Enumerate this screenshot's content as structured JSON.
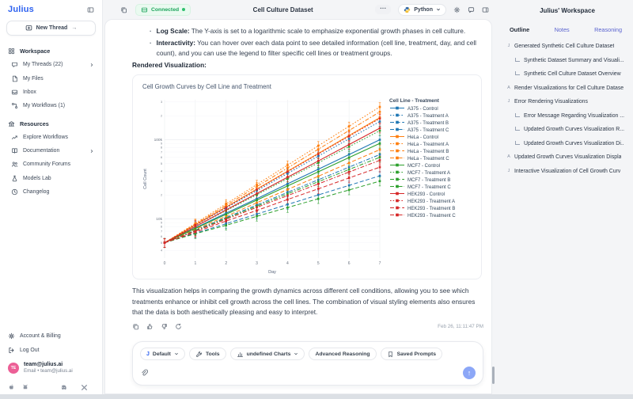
{
  "brand": {
    "logo": "Julius"
  },
  "topbar": {
    "title": "Cell Culture Dataset",
    "connected_label": "Connected",
    "python_label": "Python",
    "menu_dots": "···"
  },
  "sidebar": {
    "new_thread_label": "New Thread",
    "new_thread_arrow": "→",
    "sections": [
      {
        "title": "Workspace",
        "icon": "grid",
        "items": [
          {
            "label": "My Threads (22)",
            "icon": "chat",
            "chevron": true
          },
          {
            "label": "My Files",
            "icon": "file"
          },
          {
            "label": "Inbox",
            "icon": "inbox"
          },
          {
            "label": "My Workflows (1)",
            "icon": "workflow"
          }
        ]
      },
      {
        "title": "Resources",
        "icon": "bank",
        "items": [
          {
            "label": "Explore Workflows",
            "icon": "explore"
          },
          {
            "label": "Documentation",
            "icon": "book",
            "chevron": true
          },
          {
            "label": "Community Forums",
            "icon": "people"
          },
          {
            "label": "Models Lab",
            "icon": "flask"
          },
          {
            "label": "Changelog",
            "icon": "clock"
          }
        ]
      }
    ],
    "footer_items": [
      {
        "label": "Account & Billing",
        "icon": "gear"
      },
      {
        "label": "Log Out",
        "icon": "logout"
      }
    ],
    "user": {
      "initials": "TE",
      "name": "team@julius.ai",
      "detail": "Email • team@julius.ai"
    },
    "app_icons": [
      "apple",
      "android"
    ],
    "app_icons_right": [
      "discord",
      "x-twitter"
    ]
  },
  "message": {
    "bullets": [
      {
        "title": "Log Scale:",
        "text": "The Y-axis is set to a logarithmic scale to emphasize exponential growth phases in cell culture."
      },
      {
        "title": "Interactivity:",
        "text": "You can hover over each data point to see detailed information (cell line, treatment, day, and cell count), and you can use the legend to filter specific cell lines or treatment groups."
      }
    ],
    "rendered_viz_label": "Rendered Visualization:",
    "closing_paragraph": "This visualization helps in comparing the growth dynamics across different cell conditions, allowing you to see which treatments enhance or inhibit cell growth across the cell lines. The combination of visual styling elements also ensures that the data is both aesthetically pleasing and easy to interpret.",
    "action_icons": [
      "copy",
      "thumbs-up",
      "thumbs-down",
      "regenerate"
    ],
    "timestamp": "Feb 26, 11:11:47 PM"
  },
  "chart_data": {
    "type": "line",
    "title": "Cell Growth Curves by Cell Line and Treatment",
    "xlabel": "Day",
    "ylabel": "Cell Count",
    "legend_title": "Cell Line - Treatment",
    "legend_position": "right",
    "yscale": "log",
    "ylim": [
      3200,
      320000
    ],
    "x": [
      0,
      1,
      2,
      3,
      4,
      5,
      6,
      7
    ],
    "error_bars_pct": 13,
    "grid": true,
    "series": [
      {
        "name": "A375 - Control",
        "color": "#1f77b4",
        "dash": "solid",
        "values": [
          5000,
          7700,
          11800,
          18000,
          27700,
          42500,
          65100,
          100000
        ]
      },
      {
        "name": "A375 - Treatment A",
        "color": "#1f77b4",
        "dash": "dot",
        "values": [
          5000,
          8300,
          13700,
          22700,
          37500,
          62000,
          102600,
          170000
        ]
      },
      {
        "name": "A375 - Treatment B",
        "color": "#1f77b4",
        "dash": "dash",
        "values": [
          5000,
          6600,
          8700,
          11500,
          15200,
          20100,
          26500,
          35000
        ]
      },
      {
        "name": "A375 - Treatment C",
        "color": "#1f77b4",
        "dash": "dashdot",
        "values": [
          5000,
          7200,
          10400,
          15000,
          21700,
          31200,
          45100,
          65000
        ]
      },
      {
        "name": "HeLa - Control",
        "color": "#ff7f0e",
        "dash": "solid",
        "values": [
          5000,
          8400,
          14100,
          23800,
          40000,
          67200,
          113100,
          190000
        ]
      },
      {
        "name": "HeLa - Treatment A",
        "color": "#ff7f0e",
        "dash": "dot",
        "values": [
          5000,
          8800,
          15500,
          27200,
          47800,
          84000,
          147800,
          260000
        ]
      },
      {
        "name": "HeLa - Treatment B",
        "color": "#ff7f0e",
        "dash": "dash",
        "values": [
          5000,
          7400,
          10800,
          16000,
          23500,
          34600,
          50900,
          75000
        ]
      },
      {
        "name": "HeLa - Treatment C",
        "color": "#ff7f0e",
        "dash": "dashdot",
        "values": [
          5000,
          8600,
          14800,
          25600,
          44000,
          75800,
          130600,
          225000
        ]
      },
      {
        "name": "MCF7 - Control",
        "color": "#2ca02c",
        "dash": "solid",
        "values": [
          5000,
          7600,
          11400,
          17300,
          26100,
          39400,
          59600,
          90000
        ]
      },
      {
        "name": "MCF7 - Treatment A",
        "color": "#2ca02c",
        "dash": "dot",
        "values": [
          5000,
          8000,
          12700,
          20200,
          32200,
          51200,
          81600,
          130000
        ]
      },
      {
        "name": "MCF7 - Treatment B",
        "color": "#2ca02c",
        "dash": "dash",
        "values": [
          5000,
          6500,
          8300,
          10800,
          13900,
          18000,
          23200,
          30000
        ]
      },
      {
        "name": "MCF7 - Treatment C",
        "color": "#2ca02c",
        "dash": "dashdot",
        "values": [
          5000,
          7100,
          10200,
          14500,
          20700,
          29500,
          42100,
          60000
        ]
      },
      {
        "name": "HEK293 - Control",
        "color": "#d62728",
        "dash": "solid",
        "values": [
          5000,
          8000,
          13000,
          20900,
          33600,
          54000,
          87000,
          140000
        ]
      },
      {
        "name": "HEK293 - Treatment A",
        "color": "#d62728",
        "dash": "dot",
        "values": [
          5000,
          8400,
          14000,
          23500,
          39400,
          65900,
          110400,
          185000
        ]
      },
      {
        "name": "HEK293 - Treatment B",
        "color": "#d62728",
        "dash": "dash",
        "values": [
          5000,
          6800,
          9400,
          12800,
          17600,
          24000,
          32900,
          45000
        ]
      },
      {
        "name": "HEK293 - Treatment C",
        "color": "#d62728",
        "dash": "dashdot",
        "values": [
          5000,
          7000,
          9900,
          14000,
          19700,
          27700,
          39100,
          55000
        ]
      }
    ]
  },
  "composer": {
    "pills": [
      {
        "label": "Default",
        "icon": "julius-j",
        "chevron": true
      },
      {
        "label": "Tools",
        "icon": "wrench"
      },
      {
        "label": "undefined Charts",
        "icon": "chart",
        "chevron": true
      },
      {
        "label": "Advanced Reasoning"
      },
      {
        "label": "Saved Prompts",
        "icon": "bookmark"
      }
    ],
    "send_glyph": "↑"
  },
  "right_panel": {
    "title": "Julius' Workspace",
    "tabs": [
      {
        "label": "Outline",
        "active": true
      },
      {
        "label": "Notes",
        "active": false
      },
      {
        "label": "Reasoning",
        "active": false
      }
    ],
    "items": [
      {
        "level": 1,
        "icon": "J",
        "label": "Generated Synthetic Cell Culture Dataset"
      },
      {
        "level": 2,
        "label": "Synthetic Dataset Summary and Visuali..."
      },
      {
        "level": 2,
        "label": "Synthetic Cell Culture Dataset Overview"
      },
      {
        "level": 1,
        "icon": "A",
        "label": "Render Visualizations for Cell Culture Datase"
      },
      {
        "level": 1,
        "icon": "J",
        "label": "Error Rendering Visualizations"
      },
      {
        "level": 2,
        "label": "Error Message Regarding Visualization ..."
      },
      {
        "level": 2,
        "label": "Updated Growth Curves Visualization R..."
      },
      {
        "level": 2,
        "label": "Updated Growth Curves Visualization Di.."
      },
      {
        "level": 1,
        "icon": "A",
        "label": "Updated Growth Curves Visualization Displa"
      },
      {
        "level": 1,
        "icon": "J",
        "label": "Interactive Visualization of Cell Growth Curv"
      }
    ]
  },
  "colors": {
    "brand_blue": "#2e62f0",
    "connected_green": "#1da45c",
    "avatar_pink": "#ec5f96",
    "send_blue": "#8ca7f7"
  }
}
